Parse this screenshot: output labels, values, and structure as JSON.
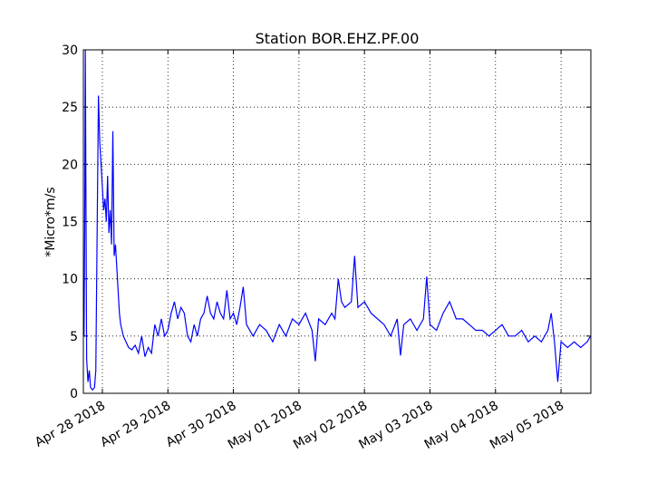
{
  "chart_data": {
    "type": "line",
    "title": "Station BOR.EHZ.PF.00",
    "y_label": "*Micro*m/s",
    "x": [
      -0.28,
      -0.27,
      -0.26,
      -0.24,
      -0.22,
      -0.2,
      -0.18,
      -0.15,
      -0.12,
      -0.1,
      -0.08,
      -0.06,
      -0.04,
      -0.02,
      0,
      0.02,
      0.04,
      0.06,
      0.08,
      0.1,
      0.12,
      0.14,
      0.16,
      0.18,
      0.2,
      0.22,
      0.24,
      0.26,
      0.28,
      0.32,
      0.36,
      0.4,
      0.45,
      0.5,
      0.55,
      0.6,
      0.65,
      0.7,
      0.75,
      0.8,
      0.85,
      0.9,
      0.95,
      1.0,
      1.05,
      1.1,
      1.15,
      1.2,
      1.25,
      1.3,
      1.35,
      1.4,
      1.45,
      1.5,
      1.55,
      1.6,
      1.65,
      1.7,
      1.75,
      1.8,
      1.85,
      1.9,
      1.95,
      2.0,
      2.05,
      2.1,
      2.15,
      2.2,
      2.25,
      2.3,
      2.4,
      2.5,
      2.6,
      2.7,
      2.8,
      2.9,
      3.0,
      3.1,
      3.2,
      3.25,
      3.3,
      3.4,
      3.5,
      3.55,
      3.6,
      3.65,
      3.7,
      3.8,
      3.85,
      3.9,
      4.0,
      4.1,
      4.2,
      4.3,
      4.4,
      4.5,
      4.55,
      4.6,
      4.7,
      4.8,
      4.9,
      4.95,
      5.0,
      5.1,
      5.2,
      5.3,
      5.4,
      5.5,
      5.6,
      5.7,
      5.8,
      5.9,
      6.0,
      6.1,
      6.2,
      6.3,
      6.4,
      6.5,
      6.6,
      6.7,
      6.8,
      6.85,
      6.9,
      6.95,
      7.0,
      7.1,
      7.2,
      7.3,
      7.4,
      7.45
    ],
    "series": [
      {
        "name": "BOR.EHZ.PF.00",
        "color": "#0000ff",
        "values": [
          5,
          14,
          30,
          3,
          1,
          2,
          0.5,
          0.3,
          0.5,
          2,
          14,
          26,
          22,
          20,
          18,
          16,
          17,
          15,
          19,
          14,
          16,
          13,
          22.9,
          12,
          13,
          11,
          9,
          7,
          6,
          5,
          4.5,
          4,
          3.8,
          4.2,
          3.5,
          5,
          3.2,
          4,
          3.5,
          6,
          5,
          6.5,
          5,
          5.5,
          7,
          8,
          6.5,
          7.5,
          7,
          5,
          4.5,
          6,
          5,
          6.5,
          7,
          8.5,
          7,
          6.5,
          8,
          7,
          6.5,
          9,
          6.5,
          7,
          6,
          7.5,
          9.3,
          6,
          5.5,
          5,
          6,
          5.5,
          4.5,
          6,
          5,
          6.5,
          6,
          7,
          5.5,
          2.8,
          6.5,
          6,
          7,
          6.5,
          10,
          8,
          7.5,
          8,
          12,
          7.5,
          8,
          7,
          6.5,
          6,
          5,
          6.5,
          3.3,
          6,
          6.5,
          5.5,
          6.5,
          10.2,
          6,
          5.5,
          7,
          8,
          6.5,
          6.5,
          6,
          5.5,
          5.5,
          5,
          5.5,
          6,
          5,
          5,
          5.5,
          4.5,
          5,
          4.5,
          5.5,
          7,
          4.5,
          1,
          4.5,
          4,
          4.5,
          4,
          4.5,
          5
        ]
      }
    ],
    "xlim": [
      -0.29,
      7.455
    ],
    "xticks": [
      {
        "value": 0,
        "label": "Apr 28 2018"
      },
      {
        "value": 1,
        "label": "Apr 29 2018"
      },
      {
        "value": 2,
        "label": "Apr 30 2018"
      },
      {
        "value": 3,
        "label": "May 01 2018"
      },
      {
        "value": 4,
        "label": "May 02 2018"
      },
      {
        "value": 5,
        "label": "May 03 2018"
      },
      {
        "value": 6,
        "label": "May 04 2018"
      },
      {
        "value": 7,
        "label": "May 05 2018"
      }
    ],
    "ylim": [
      0,
      30
    ],
    "yticks": [
      0,
      5,
      10,
      15,
      20,
      25,
      30
    ],
    "grid": true
  }
}
